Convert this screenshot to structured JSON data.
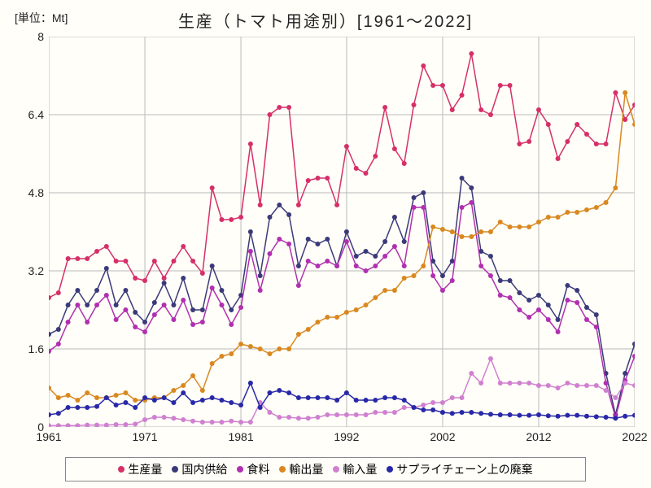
{
  "title": "生産（トマト用途別）[1961～2022]",
  "unit_label": "[単位：Mt]",
  "chart": {
    "type": "line",
    "background_color": "#fffef8",
    "grid_color": "#bbbbbb",
    "grid_width": 1,
    "title_fontsize": 20,
    "label_fontsize": 14,
    "xlim": [
      1961,
      2022
    ],
    "ylim": [
      0,
      8
    ],
    "x_ticks": [
      1961,
      1971,
      1981,
      1992,
      2002,
      2012,
      2022
    ],
    "y_ticks": [
      0,
      1.6,
      3.2,
      4.8,
      6.4,
      8
    ],
    "marker_radius": 3,
    "line_width": 1.5,
    "years": [
      1961,
      1962,
      1963,
      1964,
      1965,
      1966,
      1967,
      1968,
      1969,
      1970,
      1971,
      1972,
      1973,
      1974,
      1975,
      1976,
      1977,
      1978,
      1979,
      1980,
      1981,
      1982,
      1983,
      1984,
      1985,
      1986,
      1987,
      1988,
      1989,
      1990,
      1991,
      1992,
      1993,
      1994,
      1995,
      1996,
      1997,
      1998,
      1999,
      2000,
      2001,
      2002,
      2003,
      2004,
      2005,
      2006,
      2007,
      2008,
      2009,
      2010,
      2011,
      2012,
      2013,
      2014,
      2015,
      2016,
      2017,
      2018,
      2019,
      2020,
      2021,
      2022
    ],
    "series": [
      {
        "label": "生産量",
        "color": "#d62f6a",
        "data": [
          2.65,
          2.75,
          3.45,
          3.45,
          3.45,
          3.6,
          3.7,
          3.4,
          3.4,
          3.05,
          3.0,
          3.4,
          3.05,
          3.4,
          3.7,
          3.4,
          3.15,
          4.9,
          4.25,
          4.25,
          4.3,
          5.8,
          4.55,
          6.4,
          6.55,
          6.55,
          4.55,
          5.05,
          5.1,
          5.1,
          4.55,
          5.75,
          5.3,
          5.2,
          5.55,
          6.55,
          5.7,
          5.4,
          6.6,
          7.4,
          7.0,
          7.0,
          6.5,
          6.8,
          7.65,
          6.5,
          6.4,
          7.0,
          7.0,
          5.8,
          5.85,
          6.5,
          6.2,
          5.5,
          5.85,
          6.2,
          6.0,
          5.8,
          5.8,
          6.85,
          6.3,
          6.6
        ]
      },
      {
        "label": "国内供給",
        "color": "#3a3a7a",
        "data": [
          1.9,
          2.0,
          2.5,
          2.8,
          2.5,
          2.8,
          3.25,
          2.5,
          2.8,
          2.35,
          2.15,
          2.55,
          2.95,
          2.5,
          3.05,
          2.4,
          2.4,
          3.3,
          2.8,
          2.4,
          2.7,
          4.0,
          3.1,
          4.3,
          4.55,
          4.35,
          3.3,
          3.85,
          3.75,
          3.85,
          3.3,
          4.0,
          3.5,
          3.6,
          3.5,
          3.8,
          4.3,
          3.8,
          4.7,
          4.8,
          3.4,
          3.1,
          3.4,
          5.1,
          4.9,
          3.6,
          3.5,
          3.0,
          3.0,
          2.75,
          2.6,
          2.7,
          2.5,
          2.2,
          2.9,
          2.8,
          2.45,
          2.3,
          1.1,
          0.25,
          1.1,
          1.7
        ]
      },
      {
        "label": "食料",
        "color": "#b030b0",
        "data": [
          1.55,
          1.7,
          2.15,
          2.5,
          2.15,
          2.5,
          2.7,
          2.2,
          2.4,
          2.05,
          1.95,
          2.3,
          2.5,
          2.2,
          2.6,
          2.1,
          2.15,
          2.85,
          2.5,
          2.1,
          2.45,
          3.6,
          2.8,
          3.55,
          3.85,
          3.75,
          2.9,
          3.4,
          3.3,
          3.4,
          3.3,
          3.8,
          3.3,
          3.2,
          3.3,
          3.5,
          3.7,
          3.3,
          4.5,
          4.5,
          3.1,
          2.8,
          3.0,
          4.5,
          4.6,
          3.3,
          3.1,
          2.7,
          2.65,
          2.4,
          2.25,
          2.4,
          2.2,
          1.95,
          2.6,
          2.55,
          2.2,
          2.05,
          0.9,
          0.2,
          0.95,
          1.45
        ]
      },
      {
        "label": "輸出量",
        "color": "#d98820",
        "data": [
          0.8,
          0.6,
          0.65,
          0.55,
          0.7,
          0.6,
          0.6,
          0.65,
          0.7,
          0.55,
          0.55,
          0.6,
          0.6,
          0.75,
          0.85,
          1.05,
          0.75,
          1.3,
          1.45,
          1.5,
          1.7,
          1.65,
          1.6,
          1.5,
          1.6,
          1.6,
          1.9,
          2.0,
          2.15,
          2.25,
          2.25,
          2.35,
          2.4,
          2.5,
          2.65,
          2.8,
          2.8,
          3.05,
          3.1,
          3.3,
          4.1,
          4.05,
          4.0,
          3.9,
          3.9,
          4.0,
          4.0,
          4.2,
          4.1,
          4.1,
          4.1,
          4.2,
          4.3,
          4.3,
          4.4,
          4.4,
          4.45,
          4.5,
          4.6,
          4.9,
          6.85,
          6.2
        ]
      },
      {
        "label": "輸入量",
        "color": "#d080d0",
        "data": [
          0.03,
          0.03,
          0.03,
          0.03,
          0.04,
          0.04,
          0.04,
          0.05,
          0.05,
          0.06,
          0.15,
          0.2,
          0.2,
          0.18,
          0.15,
          0.12,
          0.1,
          0.1,
          0.1,
          0.12,
          0.1,
          0.1,
          0.5,
          0.3,
          0.2,
          0.2,
          0.18,
          0.18,
          0.2,
          0.25,
          0.25,
          0.25,
          0.25,
          0.25,
          0.3,
          0.3,
          0.3,
          0.4,
          0.4,
          0.45,
          0.5,
          0.5,
          0.6,
          0.6,
          1.1,
          0.9,
          1.4,
          0.9,
          0.9,
          0.9,
          0.9,
          0.85,
          0.85,
          0.8,
          0.9,
          0.85,
          0.85,
          0.85,
          0.75,
          0.6,
          0.9,
          0.85
        ]
      },
      {
        "label": "サプライチェーン上の廃棄",
        "color": "#2828a8",
        "data": [
          0.25,
          0.28,
          0.4,
          0.4,
          0.4,
          0.42,
          0.6,
          0.45,
          0.5,
          0.4,
          0.6,
          0.55,
          0.6,
          0.5,
          0.7,
          0.5,
          0.55,
          0.6,
          0.55,
          0.5,
          0.45,
          0.9,
          0.4,
          0.7,
          0.75,
          0.7,
          0.6,
          0.6,
          0.6,
          0.6,
          0.55,
          0.7,
          0.55,
          0.55,
          0.55,
          0.6,
          0.6,
          0.55,
          0.4,
          0.35,
          0.35,
          0.3,
          0.28,
          0.3,
          0.3,
          0.28,
          0.26,
          0.25,
          0.25,
          0.24,
          0.24,
          0.25,
          0.23,
          0.22,
          0.24,
          0.24,
          0.22,
          0.21,
          0.2,
          0.18,
          0.22,
          0.24
        ]
      }
    ]
  },
  "legend": {
    "border_color": "#888888",
    "background": "#fffef8",
    "fontsize": 14
  }
}
